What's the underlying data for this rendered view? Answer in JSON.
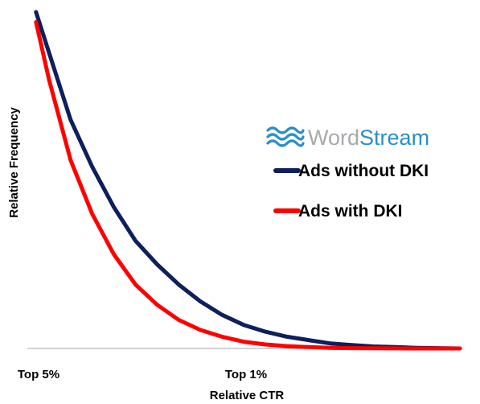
{
  "chart_data": {
    "type": "line",
    "title": "",
    "xlabel": "Relative CTR",
    "ylabel": "Relative Frequency",
    "x_tick_labels": [
      {
        "label": "Top 5%",
        "x": 0
      },
      {
        "label": "Top 1%",
        "x": 0.5
      }
    ],
    "xlim": [
      0,
      1
    ],
    "ylim": [
      0,
      1
    ],
    "grid": false,
    "legend_position": "right",
    "x": [
      0.02,
      0.05,
      0.1,
      0.15,
      0.2,
      0.25,
      0.3,
      0.35,
      0.4,
      0.45,
      0.5,
      0.55,
      0.6,
      0.65,
      0.7,
      0.75,
      0.8,
      0.85,
      0.9,
      0.95,
      1.0
    ],
    "series": [
      {
        "name": "Ads without DKI",
        "color": "#0d1f5c",
        "values": [
          1.0,
          0.88,
          0.68,
          0.54,
          0.42,
          0.32,
          0.25,
          0.19,
          0.14,
          0.1,
          0.07,
          0.05,
          0.035,
          0.025,
          0.015,
          0.01,
          0.006,
          0.004,
          0.002,
          0.001,
          0.0
        ]
      },
      {
        "name": "Ads with DKI",
        "color": "#ff0000",
        "values": [
          0.97,
          0.8,
          0.56,
          0.4,
          0.28,
          0.19,
          0.13,
          0.085,
          0.055,
          0.035,
          0.02,
          0.012,
          0.007,
          0.004,
          0.002,
          0.001,
          0.0005,
          0.0002,
          0.0001,
          0.0,
          0.0
        ]
      }
    ]
  },
  "branding": {
    "logo_text_part1": "Word",
    "logo_text_part2": "Stream",
    "logo_icon": "wave-icon",
    "colors": {
      "word": "#a7a9ac",
      "stream": "#2a8fc7",
      "wave": "#2a8fc7"
    }
  }
}
